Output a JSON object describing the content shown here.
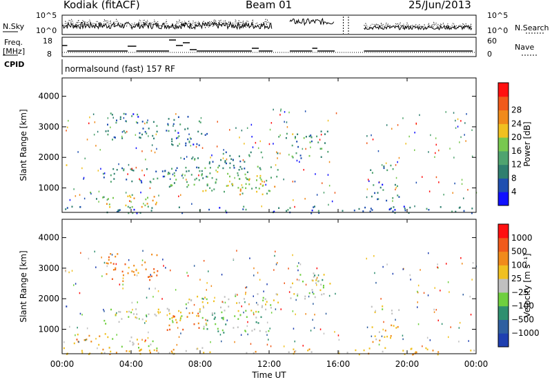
{
  "header": {
    "station": "Kodiak (fitACF)",
    "beam": "Beam 01",
    "date": "25/Jun/2013"
  },
  "labels": {
    "nsky": "N.Sky",
    "freq": "Freq.",
    "mhz": "[MHz]",
    "cpid": "CPID",
    "nsearch": "N.Search",
    "nave": "Nave",
    "nsky_top": "10^5",
    "nsky_bot": "10^0",
    "nsearch_top": "10^5",
    "nsearch_bot": "10^0",
    "freq_top": "18",
    "freq_bot": "8",
    "nave_top": "60",
    "nave_bot": "0",
    "cpid_text": "normalsound (fast) 157 RF"
  },
  "chart_data": [
    {
      "type": "heatmap",
      "name": "power",
      "ylabel": "Slant Range [km]",
      "xlabel": "Time UT",
      "ylim": [
        200,
        4600
      ],
      "yticks": [
        "1000",
        "2000",
        "3000",
        "4000"
      ],
      "xticks": [
        "00:00",
        "04:00",
        "08:00",
        "12:00",
        "16:00",
        "20:00",
        "00:00"
      ],
      "colorbar": {
        "label": "Power [dB]",
        "ticks": [
          "4",
          "8",
          "12",
          "16",
          "20",
          "24",
          "28"
        ],
        "colors": [
          "#1010ff",
          "#1f4fb0",
          "#2f7f6f",
          "#4fa36f",
          "#78c84f",
          "#f0c020",
          "#f08a1a",
          "#f05a1a",
          "#ff1010"
        ]
      },
      "regions": [
        {
          "t0": 0.0,
          "t1": 0.3,
          "r0": 1650,
          "r1": 1900,
          "level": 12
        },
        {
          "t0": 1.5,
          "t1": 2.5,
          "r0": 600,
          "r1": 900,
          "level": 10
        },
        {
          "t0": 2.5,
          "t1": 5.5,
          "r0": 400,
          "r1": 800,
          "level": 16
        },
        {
          "t0": 3.5,
          "t1": 5.0,
          "r0": 450,
          "r1": 700,
          "level": 20
        },
        {
          "t0": 2.3,
          "t1": 7.0,
          "r0": 1200,
          "r1": 1700,
          "level": 8
        },
        {
          "t0": 6.0,
          "t1": 8.5,
          "r0": 1000,
          "r1": 1600,
          "level": 10
        },
        {
          "t0": 8.0,
          "t1": 11.5,
          "r0": 900,
          "r1": 1600,
          "level": 12
        },
        {
          "t0": 9.5,
          "t1": 12.5,
          "r0": 800,
          "r1": 1500,
          "level": 16
        },
        {
          "t0": 7.0,
          "t1": 12.5,
          "r0": 1600,
          "r1": 2200,
          "level": 8
        },
        {
          "t0": 13.2,
          "t1": 15.5,
          "r0": 2000,
          "r1": 2900,
          "level": 8
        },
        {
          "t0": 12.5,
          "t1": 13.5,
          "r0": 2600,
          "r1": 2900,
          "level": 12
        },
        {
          "t0": 17.8,
          "t1": 19.5,
          "r0": 1500,
          "r1": 1800,
          "level": 8
        },
        {
          "t0": 17.8,
          "t1": 19.5,
          "r0": 600,
          "r1": 1200,
          "level": 6
        },
        {
          "t0": 2.5,
          "t1": 5.5,
          "r0": 2600,
          "r1": 3500,
          "level": 6
        },
        {
          "t0": 6.0,
          "t1": 8.5,
          "r0": 2400,
          "r1": 3400,
          "level": 6
        },
        {
          "t0": 0.0,
          "t1": 24.0,
          "r0": 200,
          "r1": 420,
          "level": 6
        }
      ]
    },
    {
      "type": "heatmap",
      "name": "velocity",
      "ylabel": "Slant Range [km]",
      "xlabel": "Time UT",
      "ylim": [
        200,
        4600
      ],
      "yticks": [
        "1000",
        "2000",
        "3000",
        "4000"
      ],
      "xticks": [
        "00:00",
        "04:00",
        "08:00",
        "12:00",
        "16:00",
        "20:00",
        "00:00"
      ],
      "colorbar": {
        "label": "Velocity [m s⁻¹]",
        "ticks": [
          "1000",
          "500",
          "100",
          "25",
          "−25",
          "−100",
          "−500",
          "−1000"
        ],
        "colors": [
          "#1f3fb0",
          "#2f5fa0",
          "#2f8f6f",
          "#6fcf3f",
          "#c0c0c0",
          "#f0c020",
          "#f08a1a",
          "#f05a1a",
          "#ff1010"
        ]
      },
      "regions": [
        {
          "t0": 0.0,
          "t1": 0.3,
          "r0": 1650,
          "r1": 1900,
          "level": 1
        },
        {
          "t0": 0.5,
          "t1": 2.5,
          "r0": 500,
          "r1": 900,
          "level": 6
        },
        {
          "t0": 2.5,
          "t1": 5.5,
          "r0": 400,
          "r1": 800,
          "level": 4
        },
        {
          "t0": 2.3,
          "t1": 7.0,
          "r0": 1200,
          "r1": 1700,
          "level": 4
        },
        {
          "t0": 6.0,
          "t1": 8.5,
          "r0": 1000,
          "r1": 1600,
          "level": 6
        },
        {
          "t0": 8.0,
          "t1": 12.0,
          "r0": 900,
          "r1": 1600,
          "level": 3
        },
        {
          "t0": 7.0,
          "t1": 12.5,
          "r0": 1600,
          "r1": 2200,
          "level": 4
        },
        {
          "t0": 13.2,
          "t1": 15.5,
          "r0": 2000,
          "r1": 2900,
          "level": 4
        },
        {
          "t0": 14.5,
          "t1": 15.5,
          "r0": 2600,
          "r1": 2900,
          "level": 3
        },
        {
          "t0": 17.8,
          "t1": 19.5,
          "r0": 1500,
          "r1": 1800,
          "level": 4
        },
        {
          "t0": 17.8,
          "t1": 19.5,
          "r0": 600,
          "r1": 1200,
          "level": 5
        },
        {
          "t0": 2.5,
          "t1": 5.5,
          "r0": 2600,
          "r1": 3500,
          "level": 6
        },
        {
          "t0": 0.0,
          "t1": 24.0,
          "r0": 200,
          "r1": 420,
          "level": 5
        }
      ]
    }
  ]
}
